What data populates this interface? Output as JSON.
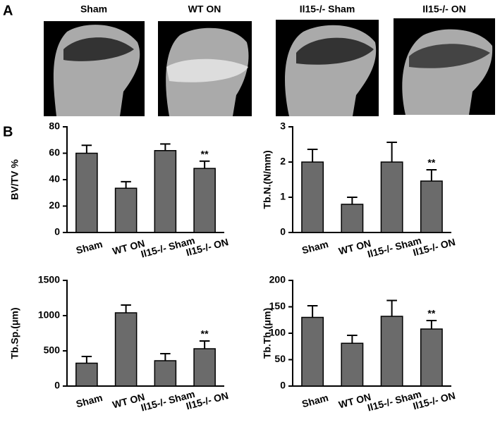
{
  "panel_a": {
    "label": "A",
    "images": [
      {
        "title": "Sham"
      },
      {
        "title": "WT ON"
      },
      {
        "title": "Il15-/- Sham"
      },
      {
        "title": "Il15-/- ON"
      }
    ]
  },
  "panel_b": {
    "label": "B"
  },
  "chart_data": [
    {
      "type": "bar",
      "ylabel": "BV/TV %",
      "categories": [
        "Sham",
        "WT ON",
        "Il15-/- Sham",
        "Il15-/- ON"
      ],
      "values": [
        60,
        33.5,
        62,
        48.5
      ],
      "errors": [
        6,
        5,
        5,
        5.5
      ],
      "color": "#6b6b6b",
      "ylim": [
        0,
        80
      ],
      "yticks": [
        0,
        20,
        40,
        60,
        80
      ],
      "annotations": [
        {
          "x": "Il15-/- ON",
          "text": "**"
        }
      ]
    },
    {
      "type": "bar",
      "ylabel": "Tb.N.(N/mm)",
      "categories": [
        "Sham",
        "WT ON",
        "Il15-/- Sham",
        "Il15-/- ON"
      ],
      "values": [
        2.0,
        0.8,
        2.0,
        1.46
      ],
      "errors": [
        0.36,
        0.2,
        0.56,
        0.32
      ],
      "color": "#6b6b6b",
      "ylim": [
        0,
        3
      ],
      "yticks": [
        0,
        1,
        2,
        3
      ],
      "annotations": [
        {
          "x": "Il15-/- ON",
          "text": "**"
        }
      ]
    },
    {
      "type": "bar",
      "ylabel": "Tb.Sp.(μm)",
      "categories": [
        "Sham",
        "WT ON",
        "Il15-/- Sham",
        "Il15-/- ON"
      ],
      "values": [
        325,
        1040,
        360,
        530
      ],
      "errors": [
        95,
        110,
        100,
        110
      ],
      "color": "#6b6b6b",
      "ylim": [
        0,
        1500
      ],
      "yticks": [
        0,
        500,
        1000,
        1500
      ],
      "annotations": [
        {
          "x": "Il15-/- ON",
          "text": "**"
        }
      ]
    },
    {
      "type": "bar",
      "ylabel": "Tb.Th.(μm)",
      "categories": [
        "Sham",
        "WT ON",
        "Il15-/- Sham",
        "Il15-/- ON"
      ],
      "values": [
        130,
        81,
        132,
        108
      ],
      "errors": [
        22,
        15,
        30,
        16
      ],
      "color": "#6b6b6b",
      "ylim": [
        0,
        200
      ],
      "yticks": [
        0,
        50,
        100,
        150,
        200
      ],
      "annotations": [
        {
          "x": "Il15-/- ON",
          "text": "**"
        }
      ]
    }
  ]
}
